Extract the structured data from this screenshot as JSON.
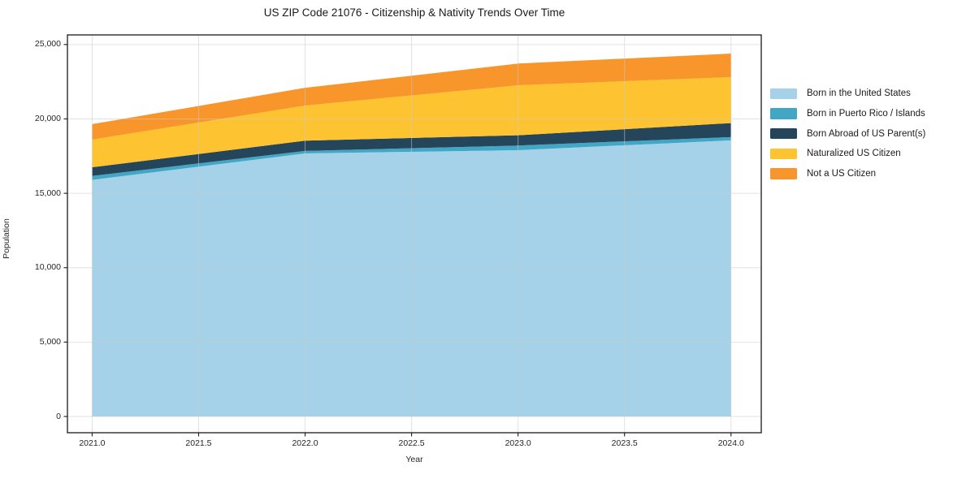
{
  "figure": {
    "background": "#ffffff"
  },
  "chart_data": {
    "type": "area",
    "stacked": true,
    "title": "US ZIP Code 21076 - Citizenship & Nativity Trends Over Time",
    "xlabel": "Year",
    "ylabel": "Population",
    "x": [
      2021,
      2022,
      2023,
      2024
    ],
    "series": [
      {
        "id": "born-us",
        "name": "Born in the United States",
        "color": "#a5d2e8",
        "values": [
          15900,
          17680,
          17900,
          18560
        ]
      },
      {
        "id": "born-pr-islands",
        "name": "Born in Puerto Rico / Islands",
        "color": "#41a7c5",
        "values": [
          270,
          170,
          310,
          220
        ]
      },
      {
        "id": "born-abroad",
        "name": "Born Abroad of US Parent(s)",
        "color": "#25465a",
        "values": [
          580,
          690,
          690,
          940
        ]
      },
      {
        "id": "naturalized",
        "name": "Naturalized US Citizen",
        "color": "#fdc330",
        "values": [
          1860,
          2360,
          3360,
          3090
        ]
      },
      {
        "id": "not-citizen",
        "name": "Not a US Citizen",
        "color": "#f8952b",
        "values": [
          1040,
          1190,
          1460,
          1580
        ]
      }
    ],
    "totals": [
      19650,
      22090,
      23720,
      24390
    ],
    "xlim": [
      2020.884,
      2024.142
    ],
    "ylim": [
      -1091,
      25646
    ],
    "xticks": {
      "values": [
        2021.0,
        2021.5,
        2022.0,
        2022.5,
        2023.0,
        2023.5,
        2024.0
      ],
      "labels": [
        "2021.0",
        "2021.5",
        "2022.0",
        "2022.5",
        "2023.0",
        "2023.5",
        "2024.0"
      ]
    },
    "yticks": {
      "values": [
        0,
        5000,
        10000,
        15000,
        20000,
        25000
      ],
      "labels": [
        "0",
        "5,000",
        "10,000",
        "15,000",
        "20,000",
        "25,000"
      ]
    },
    "grid": true,
    "grid_color": "rgba(203,203,203,0.55)",
    "spine_color": "#1a1a1a",
    "legend_position": "right"
  }
}
